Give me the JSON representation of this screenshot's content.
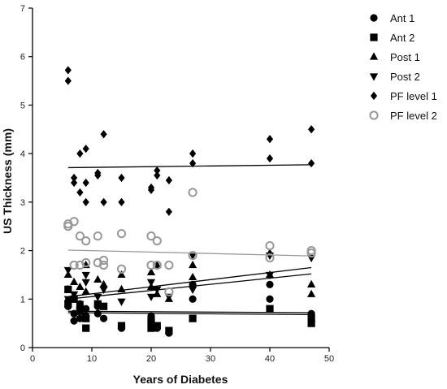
{
  "chart_data": {
    "type": "scatter",
    "xlabel": "Years of Diabetes",
    "ylabel": "US Thickness (mm)",
    "xlim": [
      0,
      50
    ],
    "ylim": [
      0,
      7
    ],
    "xticks": [
      "0",
      "10",
      "20",
      "30",
      "40",
      "50"
    ],
    "yticks": [
      "0",
      "1",
      "2",
      "3",
      "4",
      "5",
      "6",
      "7"
    ],
    "grid": false,
    "legend_position": "top-right",
    "series": [
      {
        "name": "Ant 1",
        "marker": "circle",
        "color": "#000000",
        "points": [
          [
            6,
            0.85
          ],
          [
            6,
            0.95
          ],
          [
            7,
            0.55
          ],
          [
            7,
            0.7
          ],
          [
            8,
            0.6
          ],
          [
            8,
            0.9
          ],
          [
            9,
            0.65
          ],
          [
            9,
            0.8
          ],
          [
            11,
            0.7
          ],
          [
            11,
            0.85
          ],
          [
            12,
            0.6
          ],
          [
            15,
            0.45
          ],
          [
            15,
            0.4
          ],
          [
            20,
            0.5
          ],
          [
            20,
            0.65
          ],
          [
            21,
            0.4
          ],
          [
            23,
            0.3
          ],
          [
            27,
            1.0
          ],
          [
            27,
            1.3
          ],
          [
            40,
            1.0
          ],
          [
            40,
            1.3
          ],
          [
            47,
            0.7
          ]
        ],
        "trend": [
          [
            6,
            0.75
          ],
          [
            47,
            0.72
          ]
        ]
      },
      {
        "name": "Ant 2",
        "marker": "square",
        "color": "#000000",
        "points": [
          [
            6,
            1.2
          ],
          [
            6,
            0.9
          ],
          [
            7,
            1.0
          ],
          [
            8,
            0.8
          ],
          [
            8,
            0.75
          ],
          [
            9,
            0.4
          ],
          [
            9,
            0.6
          ],
          [
            11,
            0.9
          ],
          [
            12,
            0.85
          ],
          [
            15,
            0.45
          ],
          [
            20,
            0.4
          ],
          [
            20,
            0.55
          ],
          [
            21,
            0.45
          ],
          [
            23,
            0.35
          ],
          [
            27,
            0.6
          ],
          [
            40,
            0.8
          ],
          [
            47,
            0.5
          ],
          [
            47,
            0.6
          ]
        ],
        "trend": [
          [
            6,
            0.72
          ],
          [
            47,
            0.68
          ]
        ]
      },
      {
        "name": "Post 1",
        "marker": "triangle-up",
        "color": "#000000",
        "points": [
          [
            6,
            1.2
          ],
          [
            6,
            1.5
          ],
          [
            7,
            1.35
          ],
          [
            8,
            1.25
          ],
          [
            9,
            1.7
          ],
          [
            9,
            1.15
          ],
          [
            11,
            1.4
          ],
          [
            12,
            1.3
          ],
          [
            15,
            1.5
          ],
          [
            15,
            1.2
          ],
          [
            20,
            1.55
          ],
          [
            20,
            1.25
          ],
          [
            21,
            1.7
          ],
          [
            21,
            1.1
          ],
          [
            23,
            1.0
          ],
          [
            27,
            1.7
          ],
          [
            27,
            1.45
          ],
          [
            40,
            1.95
          ],
          [
            40,
            1.5
          ],
          [
            47,
            1.3
          ],
          [
            47,
            1.1
          ]
        ],
        "trend": [
          [
            6,
            1.0
          ],
          [
            47,
            1.52
          ]
        ]
      },
      {
        "name": "Post 2",
        "marker": "triangle-down",
        "color": "#000000",
        "points": [
          [
            6,
            1.6
          ],
          [
            6,
            1.0
          ],
          [
            7,
            1.1
          ],
          [
            8,
            0.9
          ],
          [
            9,
            1.5
          ],
          [
            9,
            1.35
          ],
          [
            11,
            1.05
          ],
          [
            12,
            1.2
          ],
          [
            15,
            0.95
          ],
          [
            20,
            1.35
          ],
          [
            20,
            1.05
          ],
          [
            21,
            1.2
          ],
          [
            23,
            1.05
          ],
          [
            27,
            1.9
          ],
          [
            27,
            1.2
          ],
          [
            40,
            1.9
          ],
          [
            40,
            1.5
          ],
          [
            47,
            1.85
          ]
        ],
        "trend": [
          [
            6,
            1.05
          ],
          [
            47,
            1.65
          ]
        ]
      },
      {
        "name": "PF level 1",
        "marker": "diamond",
        "color": "#000000",
        "points": [
          [
            6,
            5.72
          ],
          [
            6,
            5.5
          ],
          [
            7,
            3.5
          ],
          [
            7,
            3.4
          ],
          [
            8,
            3.2
          ],
          [
            8,
            4.0
          ],
          [
            9,
            4.1
          ],
          [
            9,
            3.4
          ],
          [
            9,
            3.0
          ],
          [
            11,
            3.55
          ],
          [
            11,
            3.6
          ],
          [
            12,
            3.0
          ],
          [
            12,
            4.4
          ],
          [
            15,
            3.5
          ],
          [
            15,
            3.0
          ],
          [
            20,
            3.3
          ],
          [
            20,
            3.25
          ],
          [
            21,
            3.65
          ],
          [
            21,
            3.55
          ],
          [
            23,
            3.45
          ],
          [
            23,
            2.8
          ],
          [
            27,
            4.0
          ],
          [
            27,
            3.8
          ],
          [
            40,
            4.3
          ],
          [
            40,
            3.9
          ],
          [
            47,
            4.5
          ],
          [
            47,
            3.8
          ]
        ],
        "trend": [
          [
            6,
            3.71
          ],
          [
            47,
            3.77
          ]
        ]
      },
      {
        "name": "PF level 2",
        "marker": "circle-open",
        "color": "#999999",
        "points": [
          [
            6,
            2.5
          ],
          [
            6,
            2.55
          ],
          [
            7,
            2.6
          ],
          [
            7,
            1.7
          ],
          [
            8,
            2.3
          ],
          [
            8,
            1.7
          ],
          [
            9,
            2.2
          ],
          [
            9,
            1.75
          ],
          [
            11,
            2.3
          ],
          [
            11,
            1.75
          ],
          [
            12,
            1.8
          ],
          [
            12,
            1.7
          ],
          [
            15,
            2.35
          ],
          [
            15,
            1.62
          ],
          [
            20,
            2.3
          ],
          [
            20,
            1.7
          ],
          [
            21,
            2.2
          ],
          [
            21,
            1.7
          ],
          [
            23,
            1.7
          ],
          [
            23,
            1.15
          ],
          [
            27,
            3.2
          ],
          [
            27,
            1.9
          ],
          [
            40,
            2.1
          ],
          [
            40,
            1.85
          ],
          [
            47,
            2.0
          ],
          [
            47,
            1.95
          ]
        ],
        "trend": [
          [
            6,
            2.01
          ],
          [
            47,
            1.89
          ]
        ]
      }
    ]
  }
}
